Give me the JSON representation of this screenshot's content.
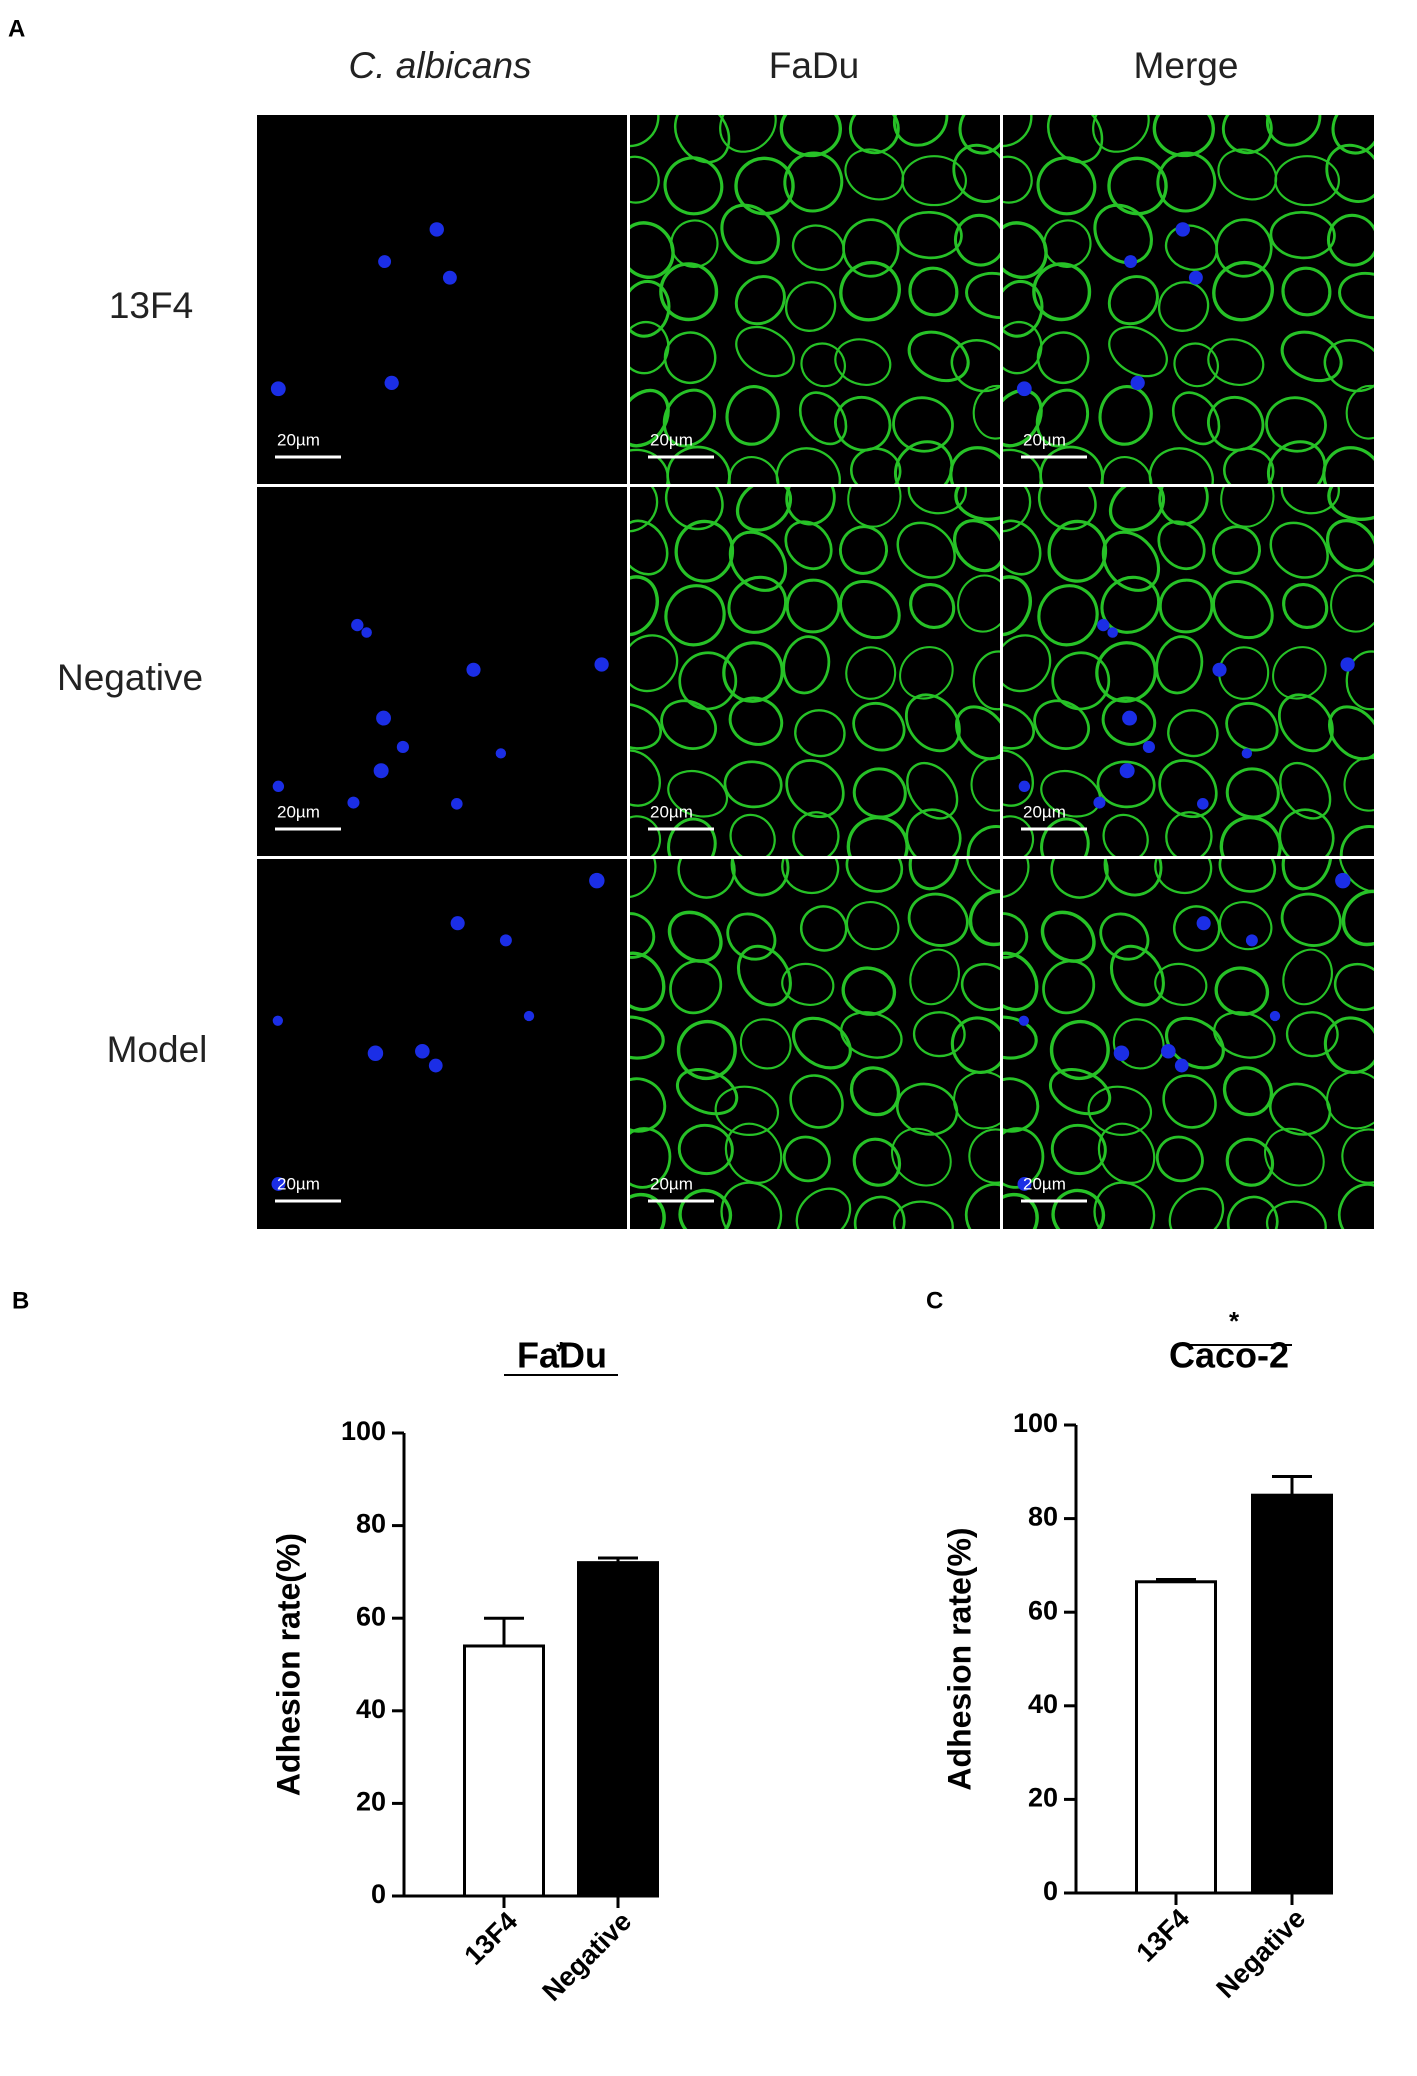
{
  "panel_a": {
    "label": "A",
    "columns": [
      "C. albicans",
      "FaDu",
      "Merge"
    ],
    "rows": [
      "13F4",
      "Negative",
      "Model"
    ],
    "scale_bar": "20µm"
  },
  "chart_data": [
    {
      "type": "bar",
      "panel": "B",
      "title": "FaDu",
      "y_label": "Adhesion rate(%)",
      "categories": [
        "13F4",
        "Negative"
      ],
      "values": [
        54,
        72
      ],
      "errors": [
        6,
        1
      ],
      "colors": [
        "#ffffff",
        "#000000"
      ],
      "ylim": [
        0,
        100
      ],
      "yticks": [
        0,
        20,
        40,
        60,
        80,
        100
      ],
      "significance": "*"
    },
    {
      "type": "bar",
      "panel": "C",
      "title": "Caco-2",
      "y_label": "Adhesion rate(%)",
      "categories": [
        "13F4",
        "Negative"
      ],
      "values": [
        66.5,
        85
      ],
      "errors": [
        0.5,
        4
      ],
      "colors": [
        "#ffffff",
        "#000000"
      ],
      "ylim": [
        0,
        100
      ],
      "yticks": [
        0,
        20,
        40,
        60,
        80,
        100
      ],
      "significance": "*"
    }
  ]
}
